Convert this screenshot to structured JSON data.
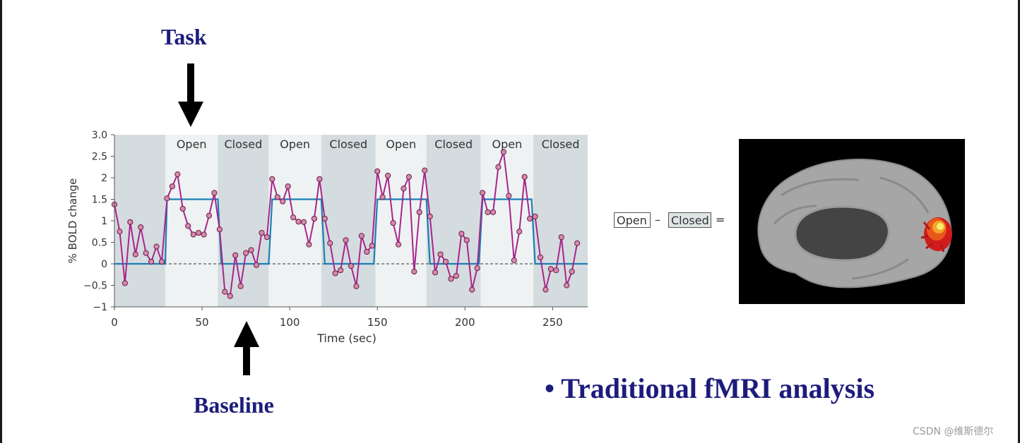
{
  "annotations": {
    "task": "Task",
    "baseline": "Baseline",
    "bullet": "• Traditional fMRI analysis"
  },
  "formula": {
    "open": "Open",
    "minus": "–",
    "closed": "Closed",
    "equals": "="
  },
  "watermark": "CSDN @维斯德尔",
  "colors": {
    "annotation_navy": "#1c1c7c",
    "bold_signal": "#a8258c",
    "bold_point_fill": "#d48aa8",
    "model_boxcar": "#1a7fb3",
    "open_band": "#eef2f3",
    "closed_band": "#d5dcdf",
    "brain_gray": "#a6a6a6",
    "activation_red": "#d01c1c",
    "activation_yellow": "#f4f06a"
  },
  "chart_data": {
    "type": "line",
    "xlabel": "Time (sec)",
    "ylabel": "% BOLD change",
    "xlim": [
      0,
      270
    ],
    "ylim": [
      -1,
      3
    ],
    "xticks": [
      0,
      50,
      100,
      150,
      200,
      250
    ],
    "yticks": [
      -1,
      -0.5,
      0,
      0.5,
      1,
      1.5,
      2,
      2.5,
      3
    ],
    "ytick_labels": [
      "−1",
      "−0.5",
      "0",
      "0.5",
      "1",
      "1.5",
      "2",
      "2.5",
      "3.0"
    ],
    "blocks": [
      {
        "start": 0,
        "end": 29,
        "label": ""
      },
      {
        "start": 29,
        "end": 59,
        "label": "Open"
      },
      {
        "start": 59,
        "end": 88,
        "label": "Closed"
      },
      {
        "start": 88,
        "end": 118,
        "label": "Open"
      },
      {
        "start": 118,
        "end": 149,
        "label": "Closed"
      },
      {
        "start": 149,
        "end": 178,
        "label": "Open"
      },
      {
        "start": 178,
        "end": 209,
        "label": "Closed"
      },
      {
        "start": 209,
        "end": 239,
        "label": "Open"
      },
      {
        "start": 239,
        "end": 270,
        "label": "Closed"
      }
    ],
    "zero_line": "dashed",
    "series": [
      {
        "values": [
          [
            0,
            1.38
          ],
          [
            3,
            0.75
          ],
          [
            6,
            -0.45
          ],
          [
            9,
            0.97
          ],
          [
            12,
            0.22
          ],
          [
            15,
            0.85
          ],
          [
            18,
            0.25
          ],
          [
            21,
            0.05
          ],
          [
            24,
            0.4
          ],
          [
            27,
            0.05
          ],
          [
            30,
            1.52
          ],
          [
            33,
            1.8
          ],
          [
            36,
            2.08
          ],
          [
            39,
            1.28
          ],
          [
            42,
            0.88
          ],
          [
            45,
            0.68
          ],
          [
            48,
            0.72
          ],
          [
            51,
            0.68
          ],
          [
            54,
            1.12
          ],
          [
            57,
            1.65
          ],
          [
            60,
            0.8
          ],
          [
            63,
            -0.65
          ],
          [
            66,
            -0.75
          ],
          [
            69,
            0.2
          ],
          [
            72,
            -0.52
          ],
          [
            75,
            0.25
          ],
          [
            78,
            0.32
          ],
          [
            81,
            -0.03
          ],
          [
            84,
            0.72
          ],
          [
            87,
            0.62
          ],
          [
            90,
            1.97
          ],
          [
            93,
            1.55
          ],
          [
            96,
            1.45
          ],
          [
            99,
            1.8
          ],
          [
            102,
            1.08
          ],
          [
            105,
            0.98
          ],
          [
            108,
            0.97
          ],
          [
            111,
            0.45
          ],
          [
            114,
            1.05
          ],
          [
            117,
            1.97
          ],
          [
            120,
            1.05
          ],
          [
            123,
            0.48
          ],
          [
            126,
            -0.22
          ],
          [
            129,
            -0.15
          ],
          [
            132,
            0.55
          ],
          [
            135,
            -0.05
          ],
          [
            138,
            -0.52
          ],
          [
            141,
            0.65
          ],
          [
            144,
            0.28
          ],
          [
            147,
            0.42
          ],
          [
            150,
            2.15
          ],
          [
            153,
            1.55
          ],
          [
            156,
            2.05
          ],
          [
            159,
            0.95
          ],
          [
            162,
            0.45
          ],
          [
            165,
            1.75
          ],
          [
            168,
            2.02
          ],
          [
            171,
            -0.18
          ],
          [
            174,
            1.2
          ],
          [
            177,
            2.17
          ],
          [
            180,
            1.1
          ],
          [
            183,
            -0.2
          ],
          [
            186,
            0.22
          ],
          [
            189,
            0.05
          ],
          [
            192,
            -0.35
          ],
          [
            195,
            -0.28
          ],
          [
            198,
            0.7
          ],
          [
            201,
            0.55
          ],
          [
            204,
            -0.6
          ],
          [
            207,
            -0.1
          ],
          [
            210,
            1.65
          ],
          [
            213,
            1.2
          ],
          [
            216,
            1.2
          ],
          [
            219,
            2.25
          ],
          [
            222,
            2.6
          ],
          [
            225,
            1.58
          ],
          [
            228,
            0.08
          ],
          [
            231,
            0.75
          ],
          [
            234,
            2.02
          ],
          [
            237,
            1.05
          ],
          [
            240,
            1.1
          ],
          [
            243,
            0.15
          ],
          [
            246,
            -0.6
          ],
          [
            249,
            -0.12
          ],
          [
            252,
            -0.15
          ],
          [
            255,
            0.62
          ],
          [
            258,
            -0.5
          ],
          [
            261,
            -0.18
          ],
          [
            264,
            0.48
          ]
        ]
      },
      {
        "values": [
          [
            0,
            0
          ],
          [
            29,
            0
          ],
          [
            30,
            1.5
          ],
          [
            59,
            1.5
          ],
          [
            61,
            0
          ],
          [
            88,
            0
          ],
          [
            90,
            1.5
          ],
          [
            118,
            1.5
          ],
          [
            120,
            0
          ],
          [
            148,
            0
          ],
          [
            150,
            1.5
          ],
          [
            178,
            1.5
          ],
          [
            180,
            0
          ],
          [
            208,
            0
          ],
          [
            210,
            1.5
          ],
          [
            238,
            1.5
          ],
          [
            240,
            0
          ],
          [
            270,
            0
          ]
        ]
      }
    ]
  }
}
